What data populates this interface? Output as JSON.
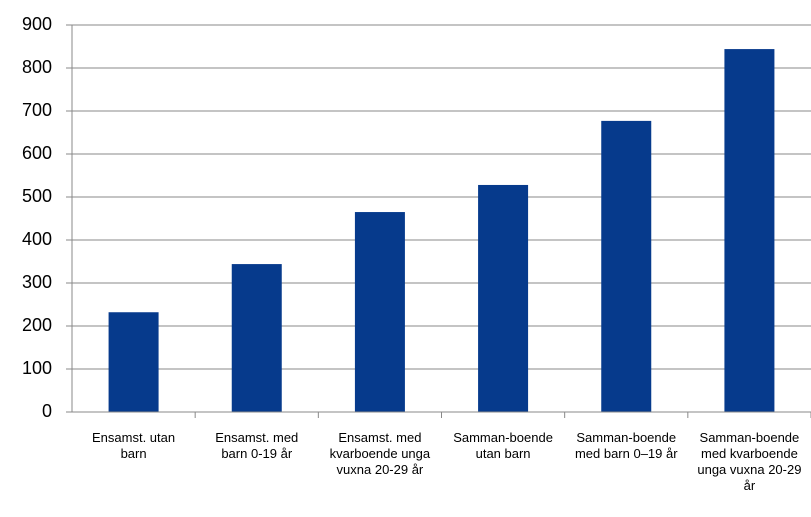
{
  "chart_data": {
    "type": "bar",
    "categories": [
      "Ensamst. utan barn",
      "Ensamst. med barn 0-19 år",
      "Ensamst. med kvarboende unga vuxna 20-29 år",
      "Samman-boende utan barn",
      "Samman-boende med barn 0–19 år",
      "Samman-boende med kvarboende unga vuxna 20-29 år"
    ],
    "values": [
      232,
      344,
      465,
      528,
      677,
      844
    ],
    "color": "#063a8c",
    "ylim": [
      0,
      900
    ],
    "yticks": [
      0,
      100,
      200,
      300,
      400,
      500,
      600,
      700,
      800,
      900
    ],
    "grid": true
  }
}
